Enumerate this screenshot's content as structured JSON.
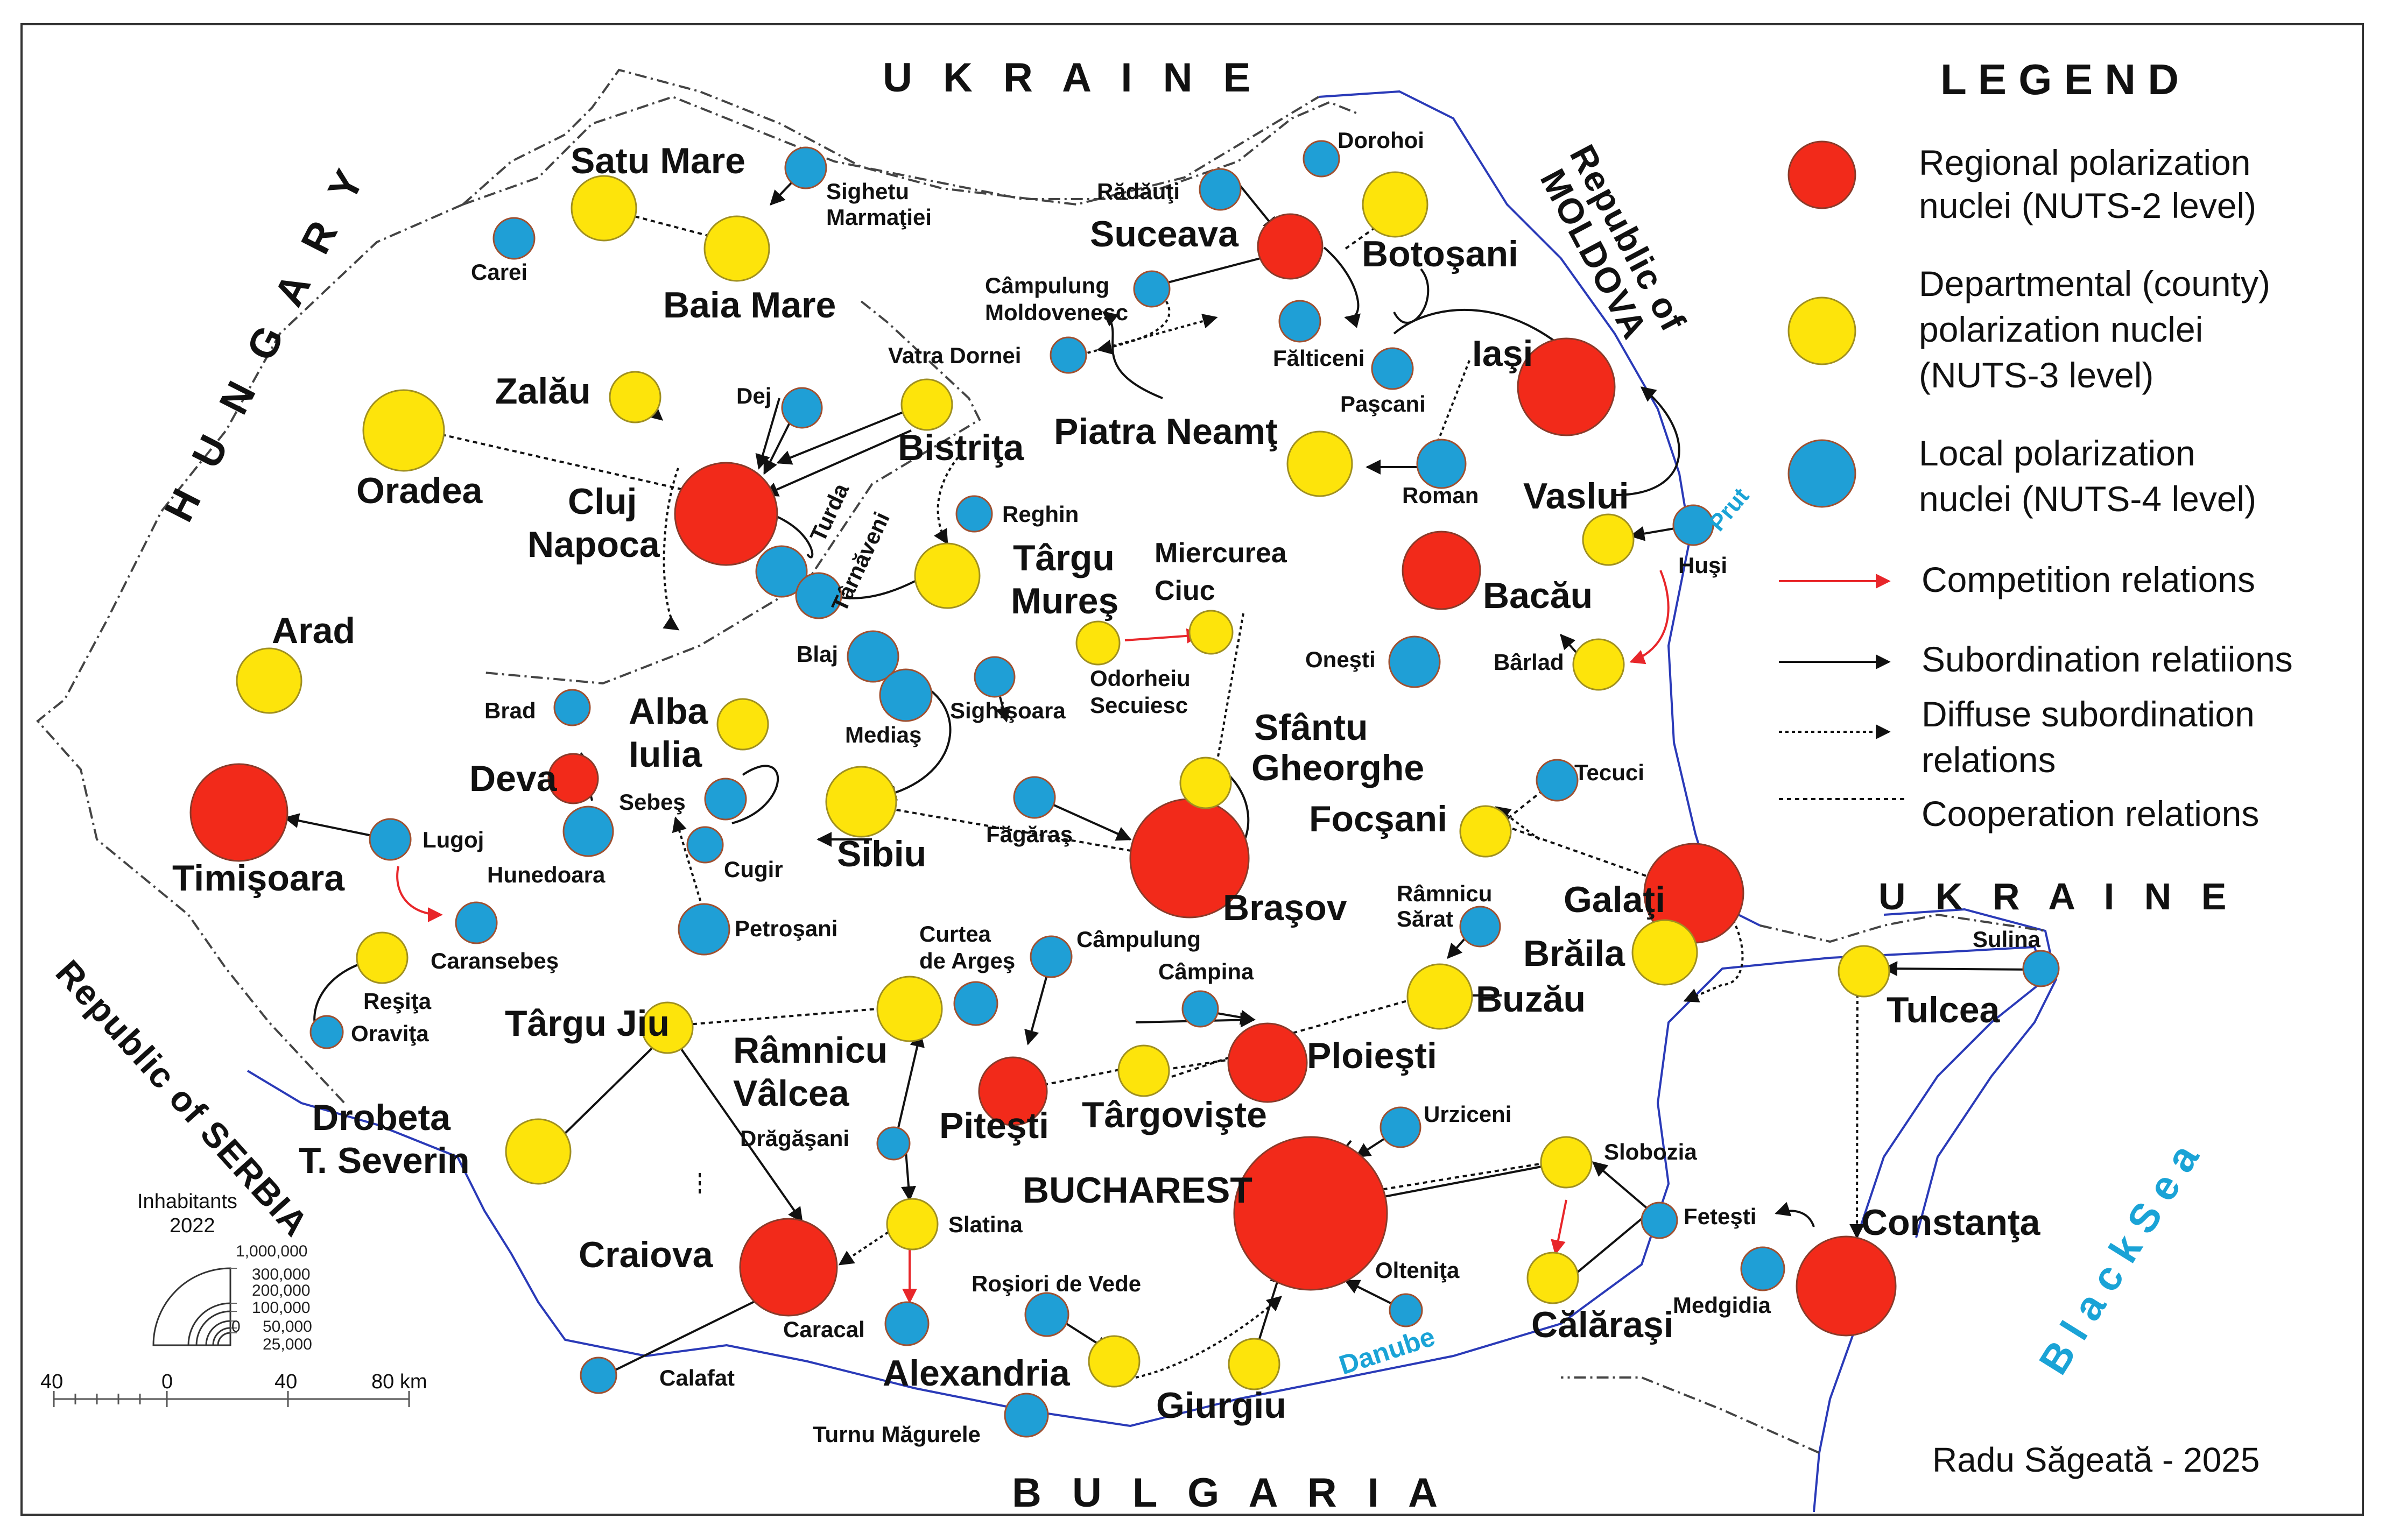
{
  "legend": {
    "title": "L E G E N D",
    "regional": [
      "Regional polarization",
      "nuclei (NUTS-2 level)"
    ],
    "departmental": [
      "Departmental (county)",
      "polarization nuclei",
      "(NUTS-3 level)"
    ],
    "local": [
      "Local polarization",
      "nuclei (NUTS-4 level)"
    ],
    "competition": "Competition relations",
    "subordination": "Subordination relatiions",
    "diffuse": [
      "Diffuse subordination",
      "relations"
    ],
    "cooperation": "Cooperation relations"
  },
  "colors": {
    "regional": "#f22a1a",
    "departmental": "#fde40b",
    "local": "#1f9fd6",
    "water": "#1aa3d6",
    "competition": "#e8262a",
    "border": "#2a3ab8"
  },
  "countries": {
    "ukraine_north": "U K R A I N E",
    "ukraine_east": "U K R A I N E",
    "hungary": "H U N G A R Y",
    "moldova": [
      "Republic of",
      "MOLDOVA"
    ],
    "serbia": "Republic of SERBIA",
    "bulgaria": "B U L G A R I A"
  },
  "water": {
    "prut": "Prut",
    "danube": "Danube",
    "black_sea": "B l a c k S e a"
  },
  "scale": {
    "title": [
      "Inhabitants",
      "2022"
    ],
    "values": [
      "1,000,000",
      "300,000",
      "200,000",
      "100,000",
      "50,000",
      "25,000",
      "0"
    ],
    "km": [
      "40",
      "0",
      "40",
      "80 km"
    ]
  },
  "author": "Radu Săgeată - 2025",
  "cities": {
    "satu_mare": "Satu Mare",
    "baia_mare": "Baia Mare",
    "carei": "Carei",
    "sighetu": [
      "Sighetu",
      "Marmaţiei"
    ],
    "suceava": "Suceava",
    "radauti": "Rădăuţi",
    "dorohoi": "Dorohoi",
    "botosani": "Botoşani",
    "campulung_m": [
      "Câmpulung",
      "Moldovenesc"
    ],
    "falticeni": "Fălticeni",
    "vatra_dornei": "Vatra Dornei",
    "iasi": "Iaşi",
    "pascani": "Paşcani",
    "piatra_neamt": "Piatra Neamţ",
    "roman": "Roman",
    "vaslui": "Vaslui",
    "husi": "Huşi",
    "bacau": "Bacău",
    "onesti": "Oneşti",
    "barlad": "Bârlad",
    "zalau": "Zalău",
    "dej": "Dej",
    "bistrita": "Bistriţa",
    "oradea": "Oradea",
    "cluj": [
      "Cluj",
      "Napoca"
    ],
    "turda": "Turda",
    "tarnaveni": "Târnăveni",
    "reghin": "Reghin",
    "targu_mures": [
      "Târgu",
      "Mureş"
    ],
    "miercurea_ciuc": [
      "Miercurea",
      "Ciuc"
    ],
    "odorheiu": [
      "Odorheiu",
      "Secuiesc"
    ],
    "arad": "Arad",
    "brad": "Brad",
    "alba_iulia": [
      "Alba",
      "Iulia"
    ],
    "blaj": "Blaj",
    "sighisoara": "Sighişoara",
    "medias": "Mediaş",
    "deva": "Deva",
    "sebes": "Sebeş",
    "sfantu_gheorghe": [
      "Sfântu",
      "Gheorghe"
    ],
    "timisoara": "Timişoara",
    "lugoj": "Lugoj",
    "hunedoara": "Hunedoara",
    "cugir": "Cugir",
    "sibiu": "Sibiu",
    "fagaras": "Făgăraş",
    "brasov": "Braşov",
    "tecuci": "Tecuci",
    "focsani": "Focşani",
    "galati": "Galaţi",
    "caransebes": "Caransebeş",
    "petrosani": "Petroşani",
    "resita": "Reşiţa",
    "oravita": "Oraviţa",
    "ramnicu_sarat": [
      "Râmnicu",
      "Sărat"
    ],
    "braila": "Brăila",
    "curtea": [
      "Curtea",
      "de Argeş"
    ],
    "campulung": "Câmpulung",
    "campina": "Câmpina",
    "buzau": "Buzău",
    "targu_jiu": "Târgu Jiu",
    "ramnicu_valcea": [
      "Râmnicu",
      "Vâlcea"
    ],
    "ploiesti": "Ploieşti",
    "targoviste": "Târgovişte",
    "pitesti": "Piteşti",
    "tulcea": "Tulcea",
    "sulina": "Sulina",
    "dragasani": "Drăgăşani",
    "urziceni": "Urziceni",
    "drobeta": [
      "Drobeta",
      "T. Severin"
    ],
    "bucharest": "BUCHAREST",
    "slobozia": "Slobozia",
    "slatina": "Slatina",
    "fetesti": "Feteşti",
    "constanta": "Constanţa",
    "craiova": "Craiova",
    "oltenita": "Olteniţa",
    "medgidia": "Medgidia",
    "rosiori": "Roşiori de Vede",
    "caracal": "Caracal",
    "calarasi": "Călăraşi",
    "alexandria": "Alexandria",
    "giurgiu": "Giurgiu",
    "calafat": "Calafat",
    "turnu": "Turnu Măgurele"
  }
}
